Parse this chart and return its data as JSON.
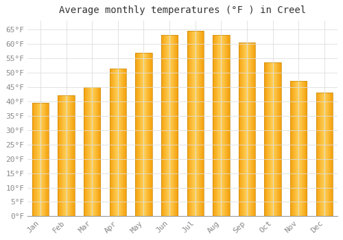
{
  "title": "Average monthly temperatures (°F ) in Creel",
  "months": [
    "Jan",
    "Feb",
    "Mar",
    "Apr",
    "May",
    "Jun",
    "Jul",
    "Aug",
    "Sep",
    "Oct",
    "Nov",
    "Dec"
  ],
  "values": [
    39.5,
    42.0,
    45.0,
    51.5,
    57.0,
    63.0,
    64.5,
    63.0,
    60.5,
    53.5,
    47.0,
    43.0
  ],
  "bar_color_center": "#FFD060",
  "bar_color_edge": "#F5A000",
  "background_color": "#FFFFFF",
  "grid_color": "#DDDDDD",
  "ylim": [
    0,
    68
  ],
  "yticks": [
    0,
    5,
    10,
    15,
    20,
    25,
    30,
    35,
    40,
    45,
    50,
    55,
    60,
    65
  ],
  "title_fontsize": 10,
  "tick_fontsize": 8,
  "title_color": "#333333",
  "tick_color": "#888888",
  "bar_width": 0.65
}
